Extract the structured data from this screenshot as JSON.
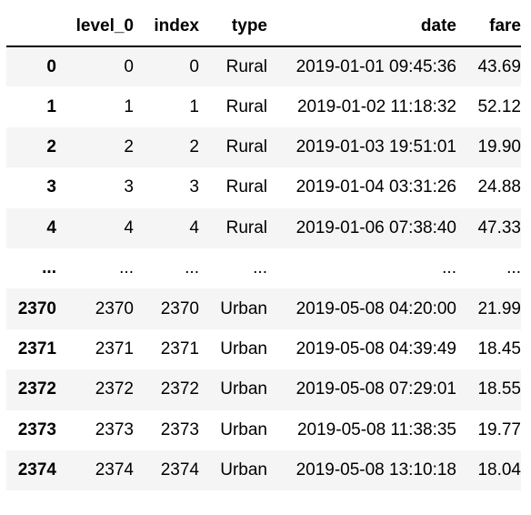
{
  "columns": [
    "",
    "level_0",
    "index",
    "type",
    "date",
    "fare"
  ],
  "rows": [
    {
      "idx": "0",
      "level_0": "0",
      "index": "0",
      "type": "Rural",
      "date": "2019-01-01 09:45:36",
      "fare": "43.69"
    },
    {
      "idx": "1",
      "level_0": "1",
      "index": "1",
      "type": "Rural",
      "date": "2019-01-02 11:18:32",
      "fare": "52.12"
    },
    {
      "idx": "2",
      "level_0": "2",
      "index": "2",
      "type": "Rural",
      "date": "2019-01-03 19:51:01",
      "fare": "19.90"
    },
    {
      "idx": "3",
      "level_0": "3",
      "index": "3",
      "type": "Rural",
      "date": "2019-01-04 03:31:26",
      "fare": "24.88"
    },
    {
      "idx": "4",
      "level_0": "4",
      "index": "4",
      "type": "Rural",
      "date": "2019-01-06 07:38:40",
      "fare": "47.33"
    },
    {
      "idx": "...",
      "level_0": "...",
      "index": "...",
      "type": "...",
      "date": "...",
      "fare": "..."
    },
    {
      "idx": "2370",
      "level_0": "2370",
      "index": "2370",
      "type": "Urban",
      "date": "2019-05-08 04:20:00",
      "fare": "21.99"
    },
    {
      "idx": "2371",
      "level_0": "2371",
      "index": "2371",
      "type": "Urban",
      "date": "2019-05-08 04:39:49",
      "fare": "18.45"
    },
    {
      "idx": "2372",
      "level_0": "2372",
      "index": "2372",
      "type": "Urban",
      "date": "2019-05-08 07:29:01",
      "fare": "18.55"
    },
    {
      "idx": "2373",
      "level_0": "2373",
      "index": "2373",
      "type": "Urban",
      "date": "2019-05-08 11:38:35",
      "fare": "19.77"
    },
    {
      "idx": "2374",
      "level_0": "2374",
      "index": "2374",
      "type": "Urban",
      "date": "2019-05-08 13:10:18",
      "fare": "18.04"
    }
  ]
}
